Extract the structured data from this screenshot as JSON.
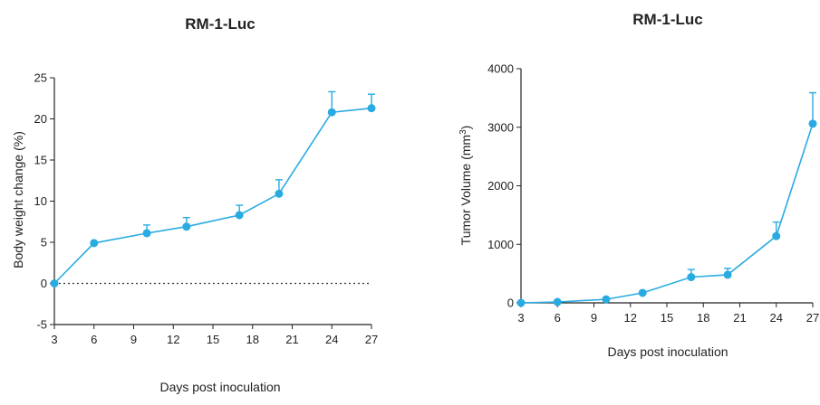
{
  "chart_data": [
    {
      "type": "line",
      "title": "RM-1-Luc",
      "xlabel": "Days post inoculation",
      "ylabel": "Body weight change (%)",
      "xlim": [
        3,
        27
      ],
      "ylim": [
        -5,
        25
      ],
      "xticks": [
        3,
        6,
        9,
        12,
        15,
        18,
        21,
        24,
        27
      ],
      "yticks": [
        -5,
        0,
        5,
        10,
        15,
        20,
        25
      ],
      "reference_line": 0,
      "series": [
        {
          "x": [
            3,
            6,
            10,
            13,
            17,
            20,
            24,
            27
          ],
          "y": [
            0,
            4.9,
            6.1,
            6.9,
            8.3,
            10.9,
            20.8,
            21.3
          ],
          "error": [
            0,
            0,
            1.0,
            1.1,
            1.2,
            1.7,
            2.5,
            1.7
          ]
        }
      ],
      "color": "#29abe2",
      "grid": false
    },
    {
      "type": "line",
      "title": "RM-1-Luc",
      "xlabel": "Days post inoculation",
      "ylabel_main": "Tumor Volume (mm",
      "ylabel_sup": "3",
      "ylabel_end": ")",
      "xlim": [
        3,
        27
      ],
      "ylim": [
        0,
        4000
      ],
      "xticks": [
        3,
        6,
        9,
        12,
        15,
        18,
        21,
        24,
        27
      ],
      "yticks": [
        0,
        1000,
        2000,
        3000,
        4000
      ],
      "series": [
        {
          "x": [
            3,
            6,
            10,
            13,
            17,
            20,
            24,
            27
          ],
          "y": [
            0,
            15,
            60,
            170,
            440,
            480,
            1140,
            3060
          ],
          "error": [
            0,
            0,
            0,
            0,
            130,
            110,
            240,
            530
          ]
        }
      ],
      "color": "#29abe2",
      "grid": false
    }
  ]
}
